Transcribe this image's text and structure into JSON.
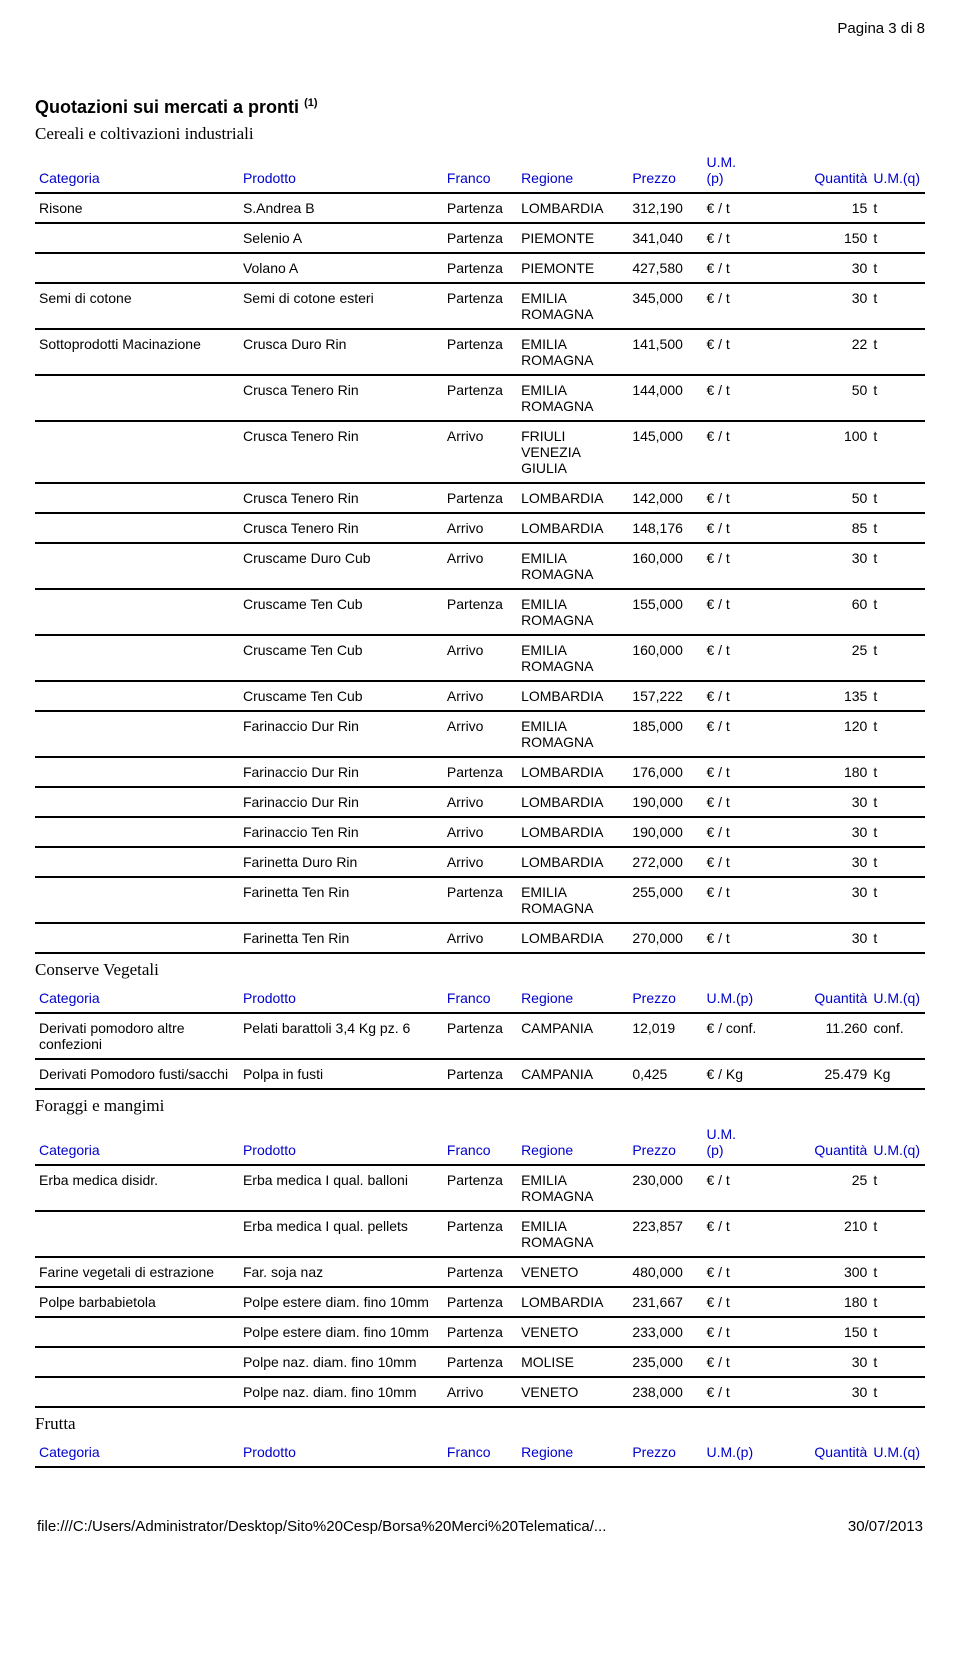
{
  "page_number": "Pagina 3 di 8",
  "title": "Quotazioni sui mercati a pronti",
  "title_sup": "(1)",
  "footer_path": "file:///C:/Users/Administrator/Desktop/Sito%20Cesp/Borsa%20Merci%20Telematica/...",
  "footer_date": "30/07/2013",
  "header_labels": {
    "categoria": "Categoria",
    "prodotto": "Prodotto",
    "franco": "Franco",
    "regione": "Regione",
    "prezzo": "Prezzo",
    "ump": "U.M.(p)",
    "ump_2line_a": "U.M.",
    "ump_2line_b": "(p)",
    "quantita": "Quantità",
    "umq": "U.M.(q)"
  },
  "sections": [
    {
      "name": "Cereali e coltivazioni industriali",
      "ump_twoline": true,
      "rows": [
        {
          "cat": "Risone",
          "prod": "S.Andrea B",
          "franco": "Partenza",
          "reg": "LOMBARDIA",
          "prezzo": "312,190",
          "ump": "€ / t",
          "q": "15",
          "umq": "t"
        },
        {
          "cat": "",
          "prod": "Selenio A",
          "franco": "Partenza",
          "reg": "PIEMONTE",
          "prezzo": "341,040",
          "ump": "€ / t",
          "q": "150",
          "umq": "t"
        },
        {
          "cat": "",
          "prod": "Volano A",
          "franco": "Partenza",
          "reg": "PIEMONTE",
          "prezzo": "427,580",
          "ump": "€ / t",
          "q": "30",
          "umq": "t"
        },
        {
          "cat": "Semi di cotone",
          "prod": "Semi di cotone esteri",
          "franco": "Partenza",
          "reg": "EMILIA ROMAGNA",
          "prezzo": "345,000",
          "ump": "€ / t",
          "q": "30",
          "umq": "t"
        },
        {
          "cat": "Sottoprodotti Macinazione",
          "prod": "Crusca Duro Rin",
          "franco": "Partenza",
          "reg": "EMILIA ROMAGNA",
          "prezzo": "141,500",
          "ump": "€ / t",
          "q": "22",
          "umq": "t"
        },
        {
          "cat": "",
          "prod": "Crusca Tenero Rin",
          "franco": "Partenza",
          "reg": "EMILIA ROMAGNA",
          "prezzo": "144,000",
          "ump": "€ / t",
          "q": "50",
          "umq": "t"
        },
        {
          "cat": "",
          "prod": "Crusca Tenero Rin",
          "franco": "Arrivo",
          "reg": "FRIULI VENEZIA GIULIA",
          "prezzo": "145,000",
          "ump": "€ / t",
          "q": "100",
          "umq": "t"
        },
        {
          "cat": "",
          "prod": "Crusca Tenero Rin",
          "franco": "Partenza",
          "reg": "LOMBARDIA",
          "prezzo": "142,000",
          "ump": "€ / t",
          "q": "50",
          "umq": "t"
        },
        {
          "cat": "",
          "prod": "Crusca Tenero Rin",
          "franco": "Arrivo",
          "reg": "LOMBARDIA",
          "prezzo": "148,176",
          "ump": "€ / t",
          "q": "85",
          "umq": "t"
        },
        {
          "cat": "",
          "prod": "Cruscame Duro Cub",
          "franco": "Arrivo",
          "reg": "EMILIA ROMAGNA",
          "prezzo": "160,000",
          "ump": "€ / t",
          "q": "30",
          "umq": "t"
        },
        {
          "cat": "",
          "prod": "Cruscame Ten Cub",
          "franco": "Partenza",
          "reg": "EMILIA ROMAGNA",
          "prezzo": "155,000",
          "ump": "€ / t",
          "q": "60",
          "umq": "t"
        },
        {
          "cat": "",
          "prod": "Cruscame Ten Cub",
          "franco": "Arrivo",
          "reg": "EMILIA ROMAGNA",
          "prezzo": "160,000",
          "ump": "€ / t",
          "q": "25",
          "umq": "t"
        },
        {
          "cat": "",
          "prod": "Cruscame Ten Cub",
          "franco": "Arrivo",
          "reg": "LOMBARDIA",
          "prezzo": "157,222",
          "ump": "€ / t",
          "q": "135",
          "umq": "t"
        },
        {
          "cat": "",
          "prod": "Farinaccio Dur Rin",
          "franco": "Arrivo",
          "reg": "EMILIA ROMAGNA",
          "prezzo": "185,000",
          "ump": "€ / t",
          "q": "120",
          "umq": "t"
        },
        {
          "cat": "",
          "prod": "Farinaccio Dur Rin",
          "franco": "Partenza",
          "reg": "LOMBARDIA",
          "prezzo": "176,000",
          "ump": "€ / t",
          "q": "180",
          "umq": "t"
        },
        {
          "cat": "",
          "prod": "Farinaccio Dur Rin",
          "franco": "Arrivo",
          "reg": "LOMBARDIA",
          "prezzo": "190,000",
          "ump": "€ / t",
          "q": "30",
          "umq": "t"
        },
        {
          "cat": "",
          "prod": "Farinaccio Ten Rin",
          "franco": "Arrivo",
          "reg": "LOMBARDIA",
          "prezzo": "190,000",
          "ump": "€ / t",
          "q": "30",
          "umq": "t"
        },
        {
          "cat": "",
          "prod": "Farinetta Duro Rin",
          "franco": "Arrivo",
          "reg": "LOMBARDIA",
          "prezzo": "272,000",
          "ump": "€ / t",
          "q": "30",
          "umq": "t"
        },
        {
          "cat": "",
          "prod": "Farinetta Ten Rin",
          "franco": "Partenza",
          "reg": "EMILIA ROMAGNA",
          "prezzo": "255,000",
          "ump": "€ / t",
          "q": "30",
          "umq": "t"
        },
        {
          "cat": "",
          "prod": "Farinetta Ten Rin",
          "franco": "Arrivo",
          "reg": "LOMBARDIA",
          "prezzo": "270,000",
          "ump": "€ / t",
          "q": "30",
          "umq": "t"
        }
      ]
    },
    {
      "name": "Conserve Vegetali",
      "ump_twoline": false,
      "rows": [
        {
          "cat": "Derivati pomodoro altre confezioni",
          "prod": "Pelati barattoli 3,4 Kg pz. 6",
          "franco": "Partenza",
          "reg": "CAMPANIA",
          "prezzo": "12,019",
          "ump": "€ / conf.",
          "q": "11.260",
          "umq": "conf."
        },
        {
          "cat": "Derivati Pomodoro fusti/sacchi",
          "prod": "Polpa in fusti",
          "franco": "Partenza",
          "reg": "CAMPANIA",
          "prezzo": "0,425",
          "ump": "€ / Kg",
          "q": "25.479",
          "umq": "Kg"
        }
      ]
    },
    {
      "name": "Foraggi e mangimi",
      "ump_twoline": true,
      "rows": [
        {
          "cat": "Erba medica disidr.",
          "prod": "Erba medica I qual. balloni",
          "franco": "Partenza",
          "reg": "EMILIA ROMAGNA",
          "prezzo": "230,000",
          "ump": "€ / t",
          "q": "25",
          "umq": "t"
        },
        {
          "cat": "",
          "prod": "Erba medica I qual. pellets",
          "franco": "Partenza",
          "reg": "EMILIA ROMAGNA",
          "prezzo": "223,857",
          "ump": "€ / t",
          "q": "210",
          "umq": "t"
        },
        {
          "cat": "Farine vegetali di estrazione",
          "prod": "Far. soja naz",
          "franco": "Partenza",
          "reg": "VENETO",
          "prezzo": "480,000",
          "ump": "€ / t",
          "q": "300",
          "umq": "t"
        },
        {
          "cat": "Polpe barbabietola",
          "prod": "Polpe estere diam. fino 10mm",
          "franco": "Partenza",
          "reg": "LOMBARDIA",
          "prezzo": "231,667",
          "ump": "€ / t",
          "q": "180",
          "umq": "t"
        },
        {
          "cat": "",
          "prod": "Polpe estere diam. fino 10mm",
          "franco": "Partenza",
          "reg": "VENETO",
          "prezzo": "233,000",
          "ump": "€ / t",
          "q": "150",
          "umq": "t"
        },
        {
          "cat": "",
          "prod": "Polpe naz. diam. fino 10mm",
          "franco": "Partenza",
          "reg": "MOLISE",
          "prezzo": "235,000",
          "ump": "€ / t",
          "q": "30",
          "umq": "t"
        },
        {
          "cat": "",
          "prod": "Polpe naz. diam. fino 10mm",
          "franco": "Arrivo",
          "reg": "VENETO",
          "prezzo": "238,000",
          "ump": "€ / t",
          "q": "30",
          "umq": "t"
        }
      ]
    },
    {
      "name": "Frutta",
      "ump_twoline": false,
      "rows": []
    }
  ]
}
